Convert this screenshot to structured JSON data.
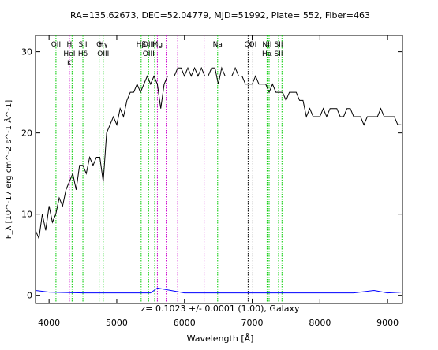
{
  "header": {
    "title": "RA=135.62673, DEC=52.04779, MJD=51992, Plate= 552, Fiber=463"
  },
  "chart_data": {
    "type": "line",
    "xlabel": "Wavelength [Å]",
    "ylabel": "F_λ [10^-17 erg cm^-2 s^-1 Å^-1]",
    "xlim": [
      3800,
      9220
    ],
    "ylim": [
      -1,
      32
    ],
    "x_ticks": [
      4000,
      5000,
      6000,
      7000,
      8000,
      9000
    ],
    "y_ticks": [
      0,
      10,
      20,
      30
    ],
    "grid": false,
    "annotation": "z= 0.1023 +/- 0.0001 (1.00), Galaxy",
    "colors": {
      "flux": "#000000",
      "error": "#0000ff",
      "emission": "#00cc00",
      "absorption": "#cc00cc",
      "sky": "#000000"
    },
    "series": [
      {
        "role": "flux",
        "x": [
          3800,
          3850,
          3900,
          3950,
          4000,
          4050,
          4100,
          4150,
          4200,
          4250,
          4300,
          4350,
          4400,
          4450,
          4500,
          4550,
          4600,
          4650,
          4700,
          4750,
          4800,
          4850,
          4900,
          4950,
          5000,
          5050,
          5100,
          5150,
          5200,
          5250,
          5300,
          5350,
          5400,
          5450,
          5500,
          5550,
          5600,
          5650,
          5700,
          5750,
          5800,
          5850,
          5900,
          5950,
          6000,
          6050,
          6100,
          6150,
          6200,
          6250,
          6300,
          6350,
          6400,
          6450,
          6500,
          6550,
          6600,
          6650,
          6700,
          6750,
          6800,
          6850,
          6900,
          6950,
          7000,
          7050,
          7100,
          7150,
          7200,
          7250,
          7300,
          7350,
          7400,
          7450,
          7500,
          7550,
          7600,
          7650,
          7700,
          7750,
          7800,
          7850,
          7900,
          7950,
          8000,
          8050,
          8100,
          8150,
          8200,
          8250,
          8300,
          8350,
          8400,
          8450,
          8500,
          8550,
          8600,
          8650,
          8700,
          8750,
          8800,
          8850,
          8900,
          8950,
          9000,
          9050,
          9100,
          9150,
          9200
        ],
        "y": [
          8,
          7,
          10,
          8,
          11,
          9,
          10,
          12,
          11,
          13,
          14,
          15,
          13,
          16,
          16,
          15,
          17,
          16,
          17,
          17,
          14,
          20,
          21,
          22,
          21,
          23,
          22,
          24,
          25,
          25,
          26,
          25,
          26,
          27,
          26,
          27,
          26,
          23,
          26,
          27,
          27,
          27,
          28,
          28,
          27,
          28,
          27,
          28,
          27,
          28,
          27,
          27,
          28,
          28,
          26,
          28,
          27,
          27,
          27,
          28,
          27,
          27,
          26,
          26,
          26,
          27,
          26,
          26,
          26,
          25,
          26,
          25,
          25,
          25,
          24,
          25,
          25,
          25,
          24,
          24,
          22,
          23,
          22,
          22,
          22,
          23,
          22,
          23,
          23,
          23,
          22,
          22,
          23,
          23,
          22,
          22,
          22,
          21,
          22,
          22,
          22,
          22,
          23,
          22,
          22,
          22,
          22,
          21,
          21
        ]
      },
      {
        "role": "error",
        "x": [
          3800,
          4000,
          4500,
          5000,
          5500,
          5600,
          6000,
          6500,
          7000,
          7500,
          8000,
          8500,
          8800,
          9000,
          9200
        ],
        "y": [
          0.6,
          0.4,
          0.3,
          0.3,
          0.3,
          0.9,
          0.3,
          0.3,
          0.3,
          0.3,
          0.3,
          0.3,
          0.6,
          0.3,
          0.4
        ]
      }
    ],
    "lines": [
      {
        "x": 4102,
        "kind": "emission",
        "labels": [
          "OII"
        ]
      },
      {
        "x": 4300,
        "kind": "absorption",
        "labels": [
          "H",
          "HeI",
          "K"
        ]
      },
      {
        "x": 4340,
        "kind": "emission",
        "labels": []
      },
      {
        "x": 4500,
        "kind": "emission",
        "labels": [
          "SII",
          "H_δ"
        ]
      },
      {
        "x": 4740,
        "kind": "emission",
        "labels": [
          "G"
        ]
      },
      {
        "x": 4800,
        "kind": "emission",
        "labels": [
          "H_γ",
          "OIII"
        ]
      },
      {
        "x": 5360,
        "kind": "emission",
        "labels": [
          "H_β"
        ]
      },
      {
        "x": 5470,
        "kind": "emission",
        "labels": [
          "OIII",
          "OIII"
        ]
      },
      {
        "x": 5560,
        "kind": "emission",
        "labels": []
      },
      {
        "x": 5600,
        "kind": "absorption",
        "labels": [
          "Mg"
        ]
      },
      {
        "x": 5730,
        "kind": "absorption",
        "labels": []
      },
      {
        "x": 5900,
        "kind": "absorption",
        "labels": []
      },
      {
        "x": 6290,
        "kind": "absorption",
        "labels": []
      },
      {
        "x": 6490,
        "kind": "emission",
        "labels": [
          "Na"
        ]
      },
      {
        "x": 6940,
        "kind": "sky",
        "labels": [
          "OI"
        ]
      },
      {
        "x": 7010,
        "kind": "sky",
        "labels": [
          "OI"
        ]
      },
      {
        "x": 7220,
        "kind": "emission",
        "labels": [
          "NII",
          "H_α"
        ]
      },
      {
        "x": 7250,
        "kind": "emission",
        "labels": []
      },
      {
        "x": 7390,
        "kind": "emission",
        "labels": [
          "SII",
          "SII"
        ]
      },
      {
        "x": 7440,
        "kind": "emission",
        "labels": []
      }
    ]
  }
}
